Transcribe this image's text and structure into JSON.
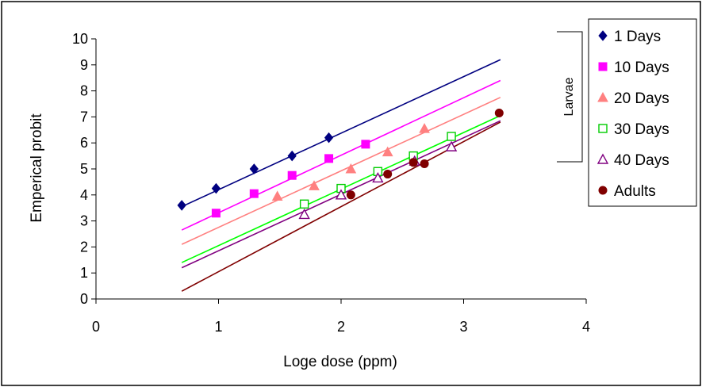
{
  "chart_data": {
    "type": "scatter",
    "title": "",
    "xlabel": "Loge dose (ppm)",
    "ylabel": "Emperical probit",
    "xlim": [
      0,
      4
    ],
    "ylim": [
      0,
      10
    ],
    "x_ticks": [
      "0",
      "1",
      "2",
      "3",
      "4"
    ],
    "y_ticks": [
      "0",
      "1",
      "2",
      "3",
      "4",
      "5",
      "6",
      "7",
      "8",
      "9",
      "10"
    ],
    "grid": false,
    "legend_position": "right",
    "bracket_label": "Larvae",
    "series": [
      {
        "name": "1 Days",
        "color": "#000080",
        "marker": "diamond-filled",
        "points": [
          [
            0.7,
            3.6
          ],
          [
            0.98,
            4.25
          ],
          [
            1.29,
            5.0
          ],
          [
            1.6,
            5.5
          ],
          [
            1.9,
            6.2
          ]
        ],
        "fit": [
          [
            0.7,
            3.55
          ],
          [
            3.3,
            9.2
          ]
        ]
      },
      {
        "name": "10 Days",
        "color": "#ff00ff",
        "marker": "square-filled",
        "points": [
          [
            0.98,
            3.3
          ],
          [
            1.29,
            4.05
          ],
          [
            1.6,
            4.75
          ],
          [
            1.9,
            5.4
          ],
          [
            2.2,
            5.95
          ]
        ],
        "fit": [
          [
            0.7,
            2.65
          ],
          [
            3.3,
            8.4
          ]
        ]
      },
      {
        "name": "20 Days",
        "color": "#ff8080",
        "marker": "triangle-filled",
        "points": [
          [
            1.48,
            3.95
          ],
          [
            1.78,
            4.35
          ],
          [
            2.08,
            5.0
          ],
          [
            2.38,
            5.65
          ],
          [
            2.68,
            6.55
          ]
        ],
        "fit": [
          [
            0.7,
            2.1
          ],
          [
            3.3,
            7.75
          ]
        ]
      },
      {
        "name": "30 Days",
        "color": "#00cc00",
        "line_color": "#00ff00",
        "marker": "square-open",
        "points": [
          [
            1.7,
            3.65
          ],
          [
            2.0,
            4.25
          ],
          [
            2.3,
            4.9
          ],
          [
            2.59,
            5.5
          ],
          [
            2.9,
            6.25
          ]
        ],
        "fit": [
          [
            0.7,
            1.4
          ],
          [
            3.3,
            7.05
          ]
        ]
      },
      {
        "name": "40 Days",
        "color": "#800080",
        "marker": "triangle-open",
        "points": [
          [
            1.7,
            3.25
          ],
          [
            2.0,
            4.0
          ],
          [
            2.3,
            4.65
          ],
          [
            2.6,
            5.3
          ],
          [
            2.9,
            5.85
          ]
        ],
        "fit": [
          [
            0.7,
            1.2
          ],
          [
            3.3,
            6.85
          ]
        ]
      },
      {
        "name": "Adults",
        "color": "#800000",
        "marker": "circle-filled",
        "points": [
          [
            2.08,
            4.0
          ],
          [
            2.38,
            4.8
          ],
          [
            2.59,
            5.25
          ],
          [
            2.68,
            5.2
          ],
          [
            3.29,
            7.15
          ]
        ],
        "fit": [
          [
            0.7,
            0.3
          ],
          [
            3.3,
            6.8
          ]
        ]
      }
    ]
  }
}
